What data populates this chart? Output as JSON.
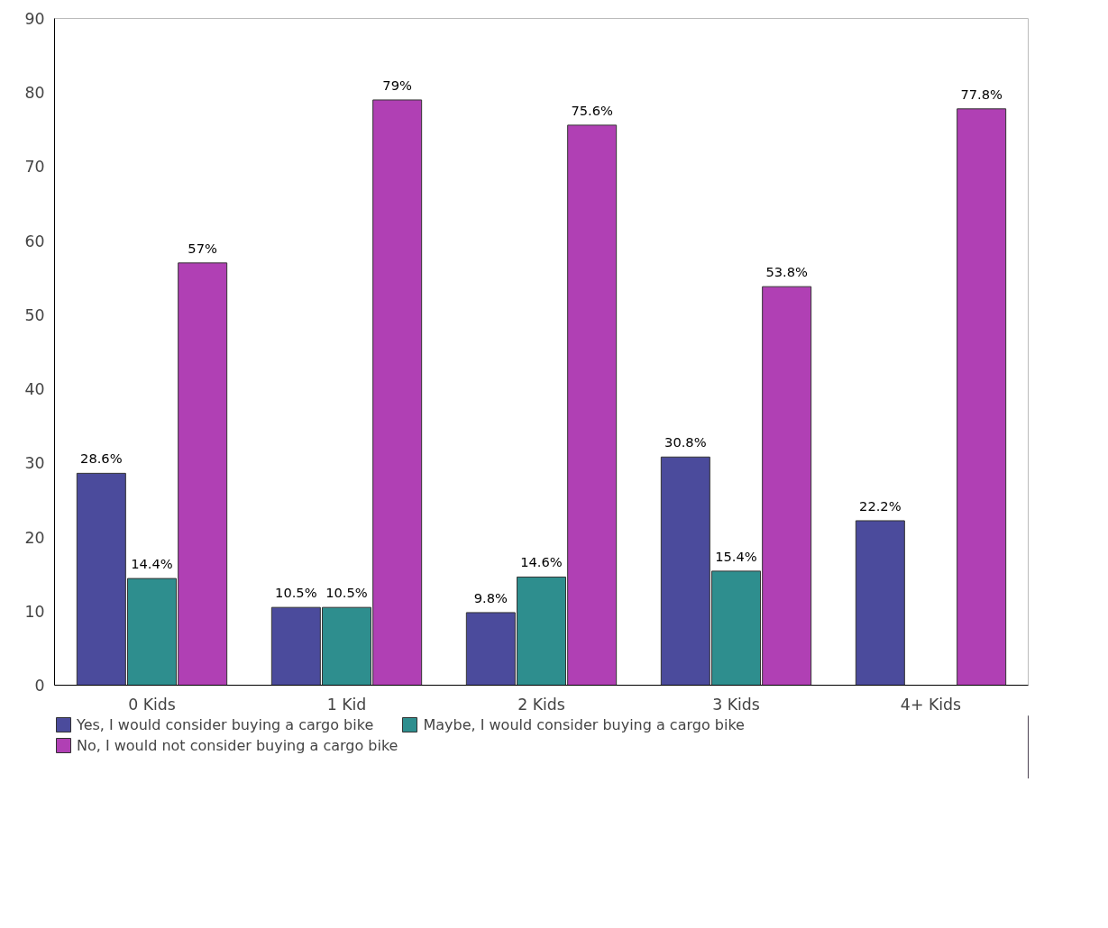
{
  "chart_data": {
    "type": "bar",
    "categories": [
      "0 Kids",
      "1 Kid",
      "2 Kids",
      "3 Kids",
      "4+ Kids"
    ],
    "series": [
      {
        "name": "Yes, I would consider buying a cargo bike",
        "color": "#4b4b9c",
        "values": [
          28.6,
          10.5,
          9.8,
          30.8,
          22.2
        ],
        "value_labels": [
          "28.6%",
          "10.5%",
          "9.8%",
          "30.8%",
          "22.2%"
        ]
      },
      {
        "name": "Maybe, I would consider buying a cargo bike",
        "color": "#2e8e8e",
        "values": [
          14.4,
          10.5,
          14.6,
          15.4,
          null
        ],
        "value_labels": [
          "14.4%",
          "10.5%",
          "14.6%",
          "15.4%",
          null
        ]
      },
      {
        "name": "No, I would not consider buying a cargo bike",
        "color": "#b040b4",
        "values": [
          57,
          79,
          75.6,
          53.8,
          77.8
        ],
        "value_labels": [
          "57%",
          "79%",
          "75.6%",
          "53.8%",
          "77.8%"
        ]
      }
    ],
    "ylim": [
      0,
      90
    ],
    "yticks": [
      0,
      10,
      20,
      30,
      40,
      50,
      60,
      70,
      80,
      90
    ],
    "grid": false,
    "legend": "bottom"
  }
}
